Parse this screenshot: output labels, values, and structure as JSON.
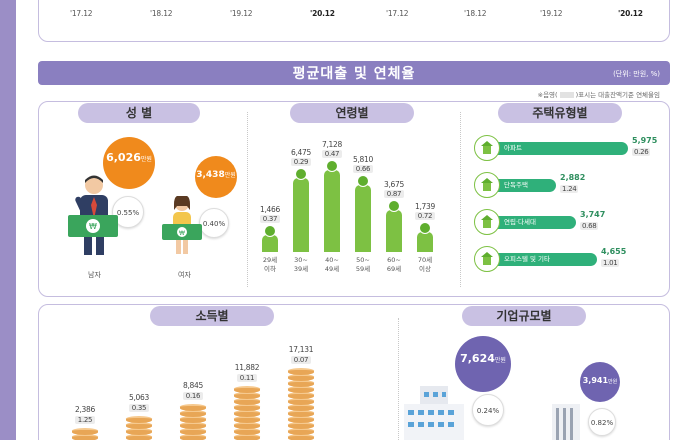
{
  "top_axis": {
    "left": [
      "'17.12",
      "'18.12",
      "'19.12",
      "'20.12"
    ],
    "right": [
      "'17.12",
      "'18.12",
      "'19.12",
      "'20.12"
    ]
  },
  "section": {
    "title": "평균대출 및 연체율",
    "unit": "(단위: 만원, %)",
    "note_prefix": "※음영(",
    "note_suffix_text": ")표시는 대출잔액기준 연체율임"
  },
  "gender": {
    "title": "성 별",
    "male": {
      "label": "남자",
      "amount": "6,026",
      "unit": "만원",
      "rate": "0.55%"
    },
    "female": {
      "label": "여자",
      "amount": "3,438",
      "unit": "만원",
      "rate": "0.40%"
    }
  },
  "age": {
    "title": "연령별",
    "groups": [
      {
        "label": "29세\n이하",
        "amount": "1,466",
        "rate": "0.37",
        "value": 1466
      },
      {
        "label": "30~\n39세",
        "amount": "6,475",
        "rate": "0.29",
        "value": 6475
      },
      {
        "label": "40~\n49세",
        "amount": "7,128",
        "rate": "0.47",
        "value": 7128
      },
      {
        "label": "50~\n59세",
        "amount": "5,810",
        "rate": "0.66",
        "value": 5810
      },
      {
        "label": "60~\n69세",
        "amount": "3,675",
        "rate": "0.87",
        "value": 3675
      },
      {
        "label": "70세\n이상",
        "amount": "1,739",
        "rate": "0.72",
        "value": 1739
      }
    ]
  },
  "housing": {
    "title": "주택유형별",
    "items": [
      {
        "label": "아파트",
        "amount": "5,975",
        "rate": "0.26",
        "value": 5975,
        "icon": "apartment-icon"
      },
      {
        "label": "단독주택",
        "amount": "2,882",
        "rate": "1.24",
        "value": 2882,
        "icon": "house-icon"
      },
      {
        "label": "연립·다세대",
        "amount": "3,747",
        "rate": "0.68",
        "value": 3747,
        "icon": "townhouse-icon"
      },
      {
        "label": "오피스텔 및 기타",
        "amount": "4,655",
        "rate": "1.01",
        "value": 4655,
        "icon": "officetel-icon"
      }
    ]
  },
  "income": {
    "title": "소득별",
    "groups": [
      {
        "amount": "2,386",
        "rate": "1.25",
        "value": 2386
      },
      {
        "amount": "5,063",
        "rate": "0.35",
        "value": 5063
      },
      {
        "amount": "8,845",
        "rate": "0.16",
        "value": 8845
      },
      {
        "amount": "11,882",
        "rate": "0.11",
        "value": 11882
      },
      {
        "amount": "17,131",
        "rate": "0.07",
        "value": 17131
      }
    ]
  },
  "company": {
    "title": "기업규모별",
    "large": {
      "amount": "7,624",
      "unit": "만원",
      "rate": "0.24%"
    },
    "small": {
      "amount": "3,941",
      "unit": "만원",
      "rate": "0.82%"
    }
  },
  "colors": {
    "purple": "#8a7fc0",
    "green": "#7dc143",
    "teal": "#2fb07a",
    "orange": "#f08a1c",
    "coin": "#e8a656",
    "bubble_purple": "#6f64b0"
  }
}
